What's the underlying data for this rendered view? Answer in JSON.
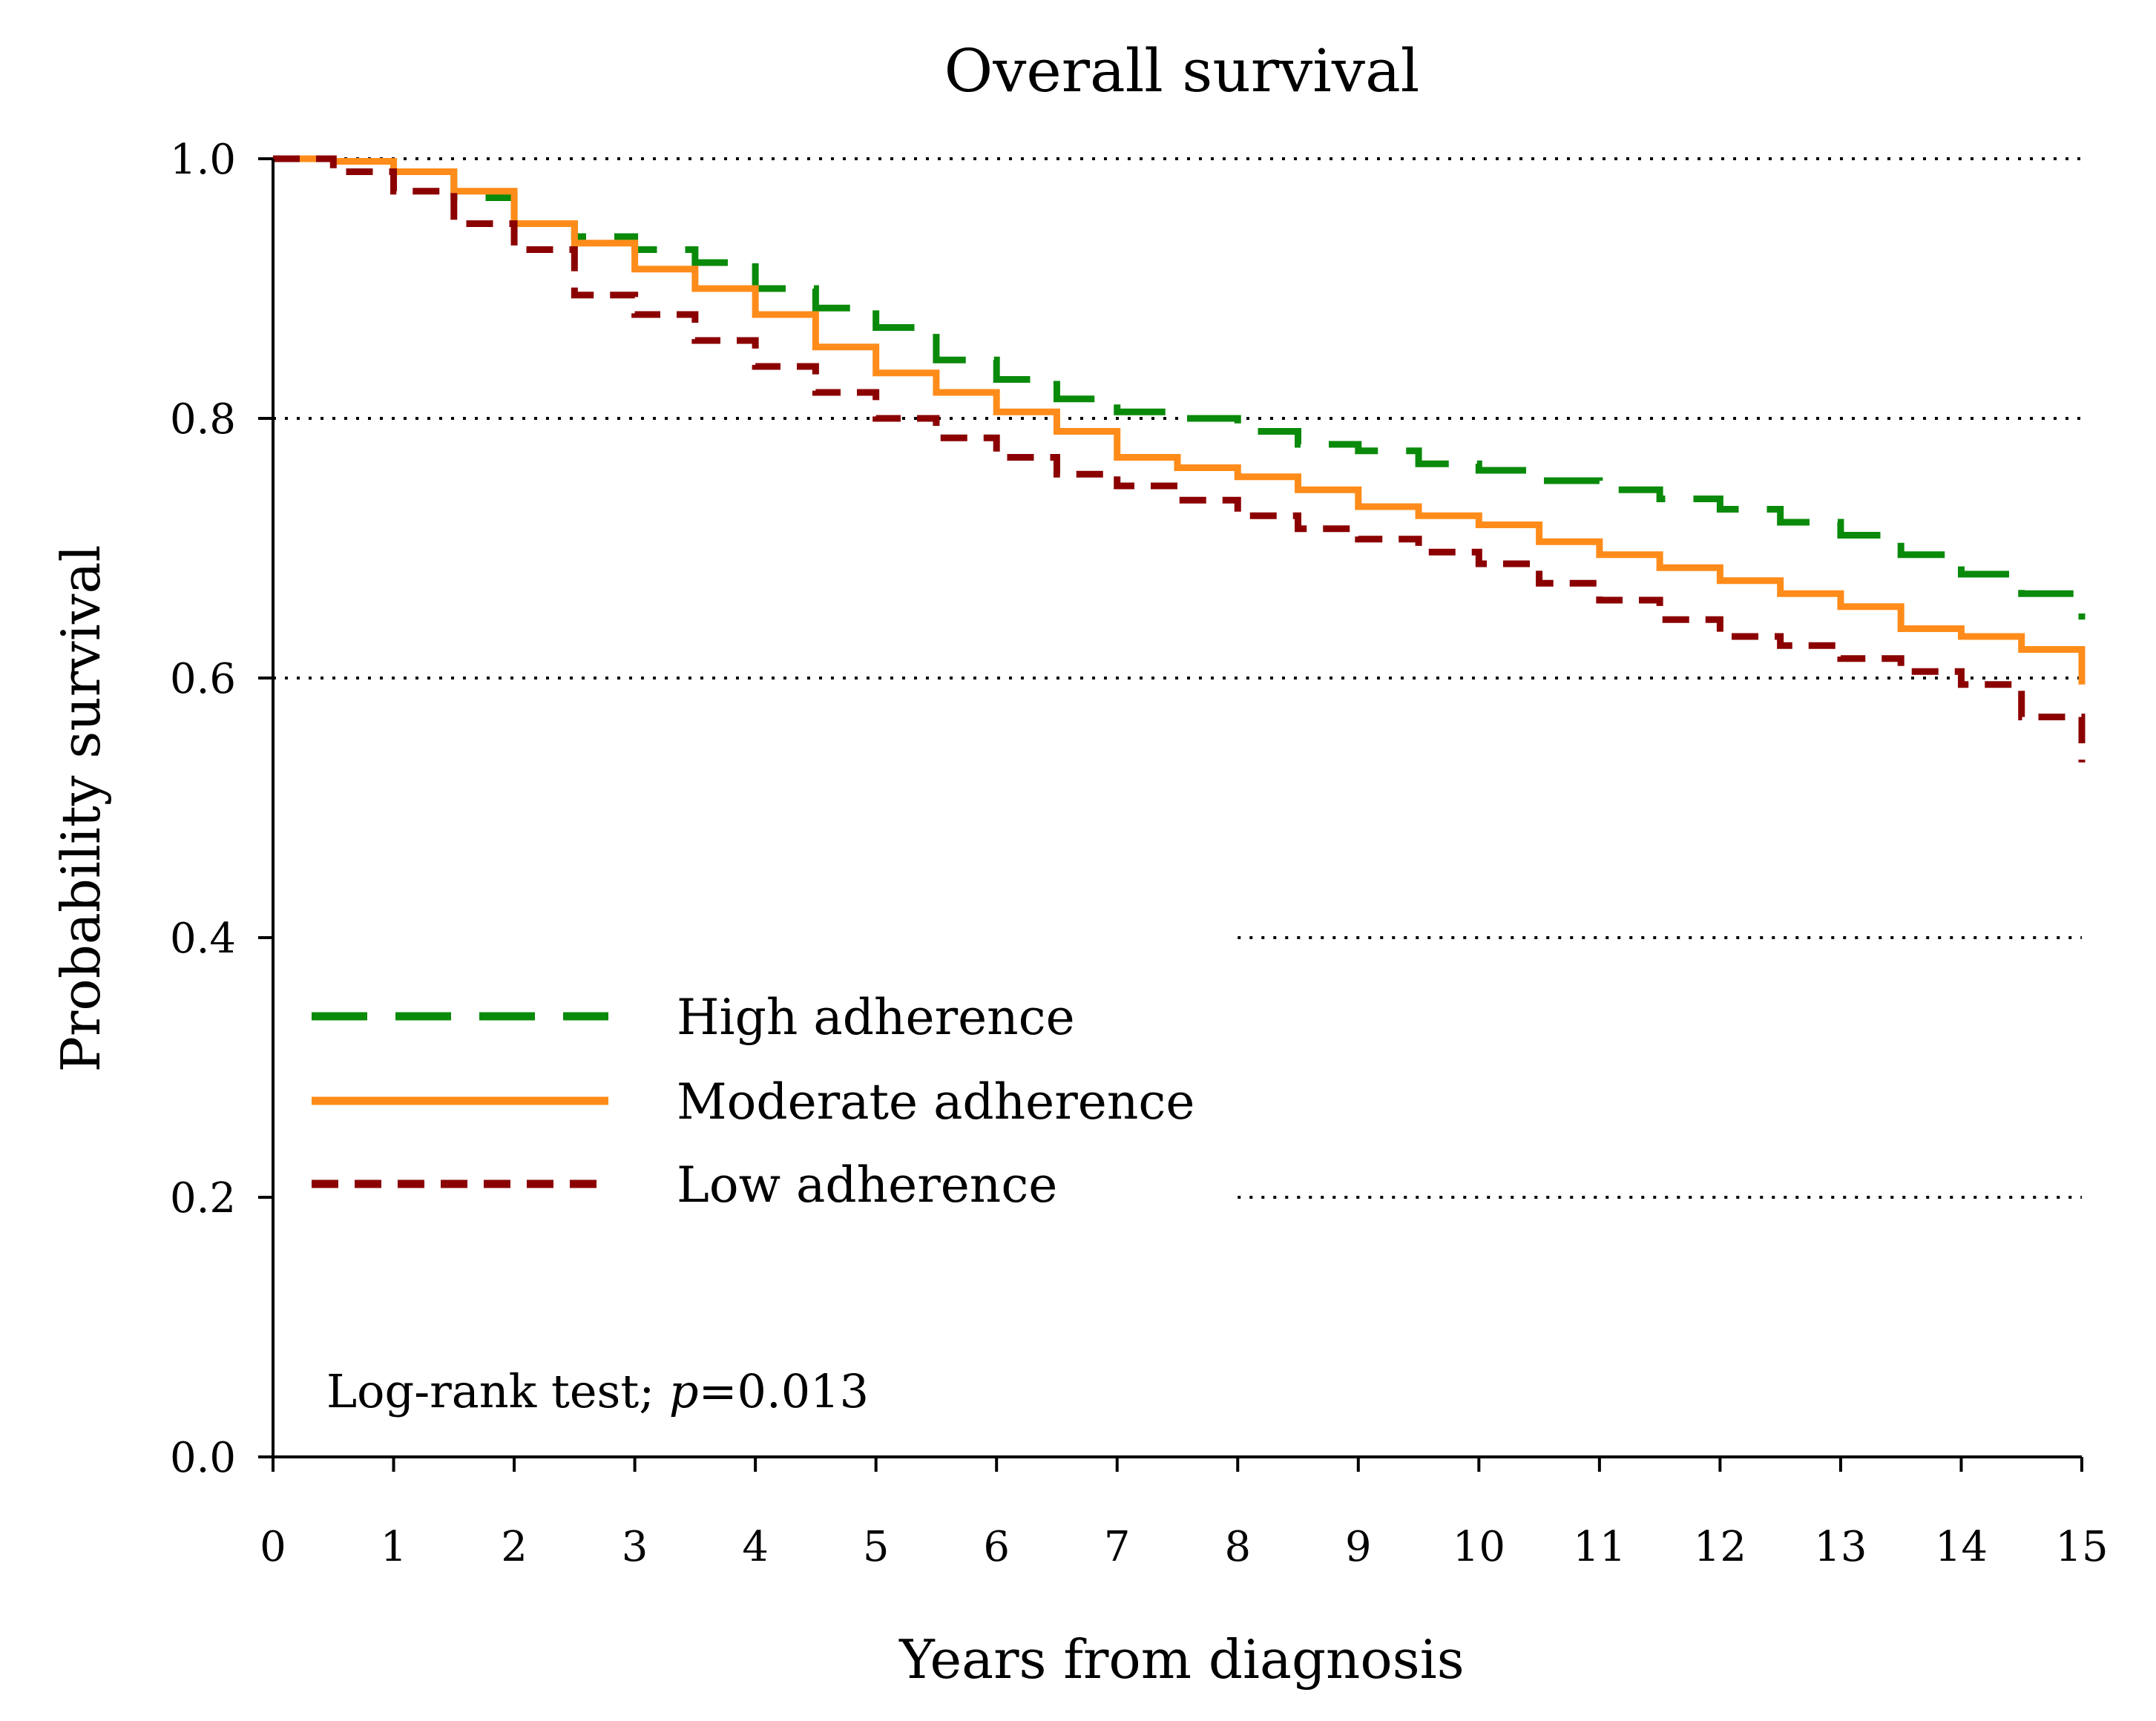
{
  "chart_data": {
    "type": "line",
    "step": true,
    "title": "Overall survival",
    "xlabel": "Years from diagnosis",
    "ylabel": "Probability survival",
    "xlim": [
      0,
      15
    ],
    "ylim": [
      0,
      1
    ],
    "x_ticks": [
      0,
      1,
      2,
      3,
      4,
      5,
      6,
      7,
      8,
      9,
      10,
      11,
      12,
      13,
      14,
      15
    ],
    "x_tick_labels": [
      "0",
      "1",
      "2",
      "3",
      "4",
      "5",
      "6",
      "7",
      "8",
      "9",
      "10",
      "11",
      "12",
      "13",
      "14",
      "15"
    ],
    "y_ticks": [
      0,
      0.2,
      0.4,
      0.6,
      0.8,
      1.0
    ],
    "y_tick_labels": [
      "0.0",
      "0.2",
      "0.4",
      "0.6",
      "0.8",
      "1.0"
    ],
    "gridlines": [
      {
        "y": 1.0,
        "x_from": 0,
        "x_to": 15
      },
      {
        "y": 0.8,
        "x_from": 0,
        "x_to": 15
      },
      {
        "y": 0.6,
        "x_from": 0,
        "x_to": 15
      },
      {
        "y": 0.4,
        "x_from": 8,
        "x_to": 15
      },
      {
        "y": 0.2,
        "x_from": 8,
        "x_to": 15
      }
    ],
    "legend": {
      "position": "center-left"
    },
    "annotation": {
      "prefix": "Log-rank test; ",
      "italic": "p",
      "suffix": "=0.013"
    },
    "series": [
      {
        "name": "High adherence",
        "color": "#0a8a0a",
        "dash": "long",
        "x": [
          0,
          0.5,
          1,
          1.5,
          2,
          2.5,
          3,
          3.5,
          4,
          4.5,
          5,
          5.5,
          6,
          6.5,
          7,
          7.5,
          8,
          8.5,
          9,
          9.5,
          10,
          10.5,
          11,
          11.5,
          12,
          12.5,
          13,
          13.5,
          14,
          14.5,
          15
        ],
        "y": [
          1.0,
          0.998,
          0.99,
          0.97,
          0.95,
          0.94,
          0.93,
          0.92,
          0.9,
          0.885,
          0.87,
          0.845,
          0.83,
          0.815,
          0.805,
          0.8,
          0.79,
          0.78,
          0.775,
          0.765,
          0.76,
          0.752,
          0.745,
          0.738,
          0.73,
          0.72,
          0.71,
          0.695,
          0.68,
          0.665,
          0.645
        ]
      },
      {
        "name": "Moderate adherence",
        "color": "#ff8c1a",
        "dash": "solid",
        "x": [
          0,
          0.5,
          1,
          1.5,
          2,
          2.5,
          3,
          3.5,
          4,
          4.5,
          5,
          5.5,
          6,
          6.5,
          7,
          7.5,
          8,
          8.5,
          9,
          9.5,
          10,
          10.5,
          11,
          11.5,
          12,
          12.5,
          13,
          13.5,
          14,
          14.5,
          15
        ],
        "y": [
          1.0,
          0.998,
          0.99,
          0.975,
          0.95,
          0.935,
          0.915,
          0.9,
          0.88,
          0.855,
          0.835,
          0.82,
          0.805,
          0.79,
          0.77,
          0.762,
          0.755,
          0.745,
          0.732,
          0.725,
          0.718,
          0.705,
          0.695,
          0.685,
          0.675,
          0.665,
          0.655,
          0.638,
          0.632,
          0.622,
          0.595
        ]
      },
      {
        "name": "Low adherence",
        "color": "#8b0000",
        "dash": "short",
        "x": [
          0,
          0.5,
          1,
          1.5,
          2,
          2.5,
          3,
          3.5,
          4,
          4.5,
          5,
          5.5,
          6,
          6.5,
          7,
          7.5,
          8,
          8.5,
          9,
          9.5,
          10,
          10.5,
          11,
          11.5,
          12,
          12.5,
          13,
          13.5,
          14,
          14.5,
          15
        ],
        "y": [
          1.0,
          0.99,
          0.975,
          0.95,
          0.93,
          0.895,
          0.88,
          0.86,
          0.84,
          0.82,
          0.8,
          0.785,
          0.77,
          0.757,
          0.748,
          0.737,
          0.725,
          0.715,
          0.707,
          0.697,
          0.688,
          0.673,
          0.66,
          0.645,
          0.632,
          0.625,
          0.615,
          0.605,
          0.595,
          0.57,
          0.535
        ]
      }
    ]
  }
}
